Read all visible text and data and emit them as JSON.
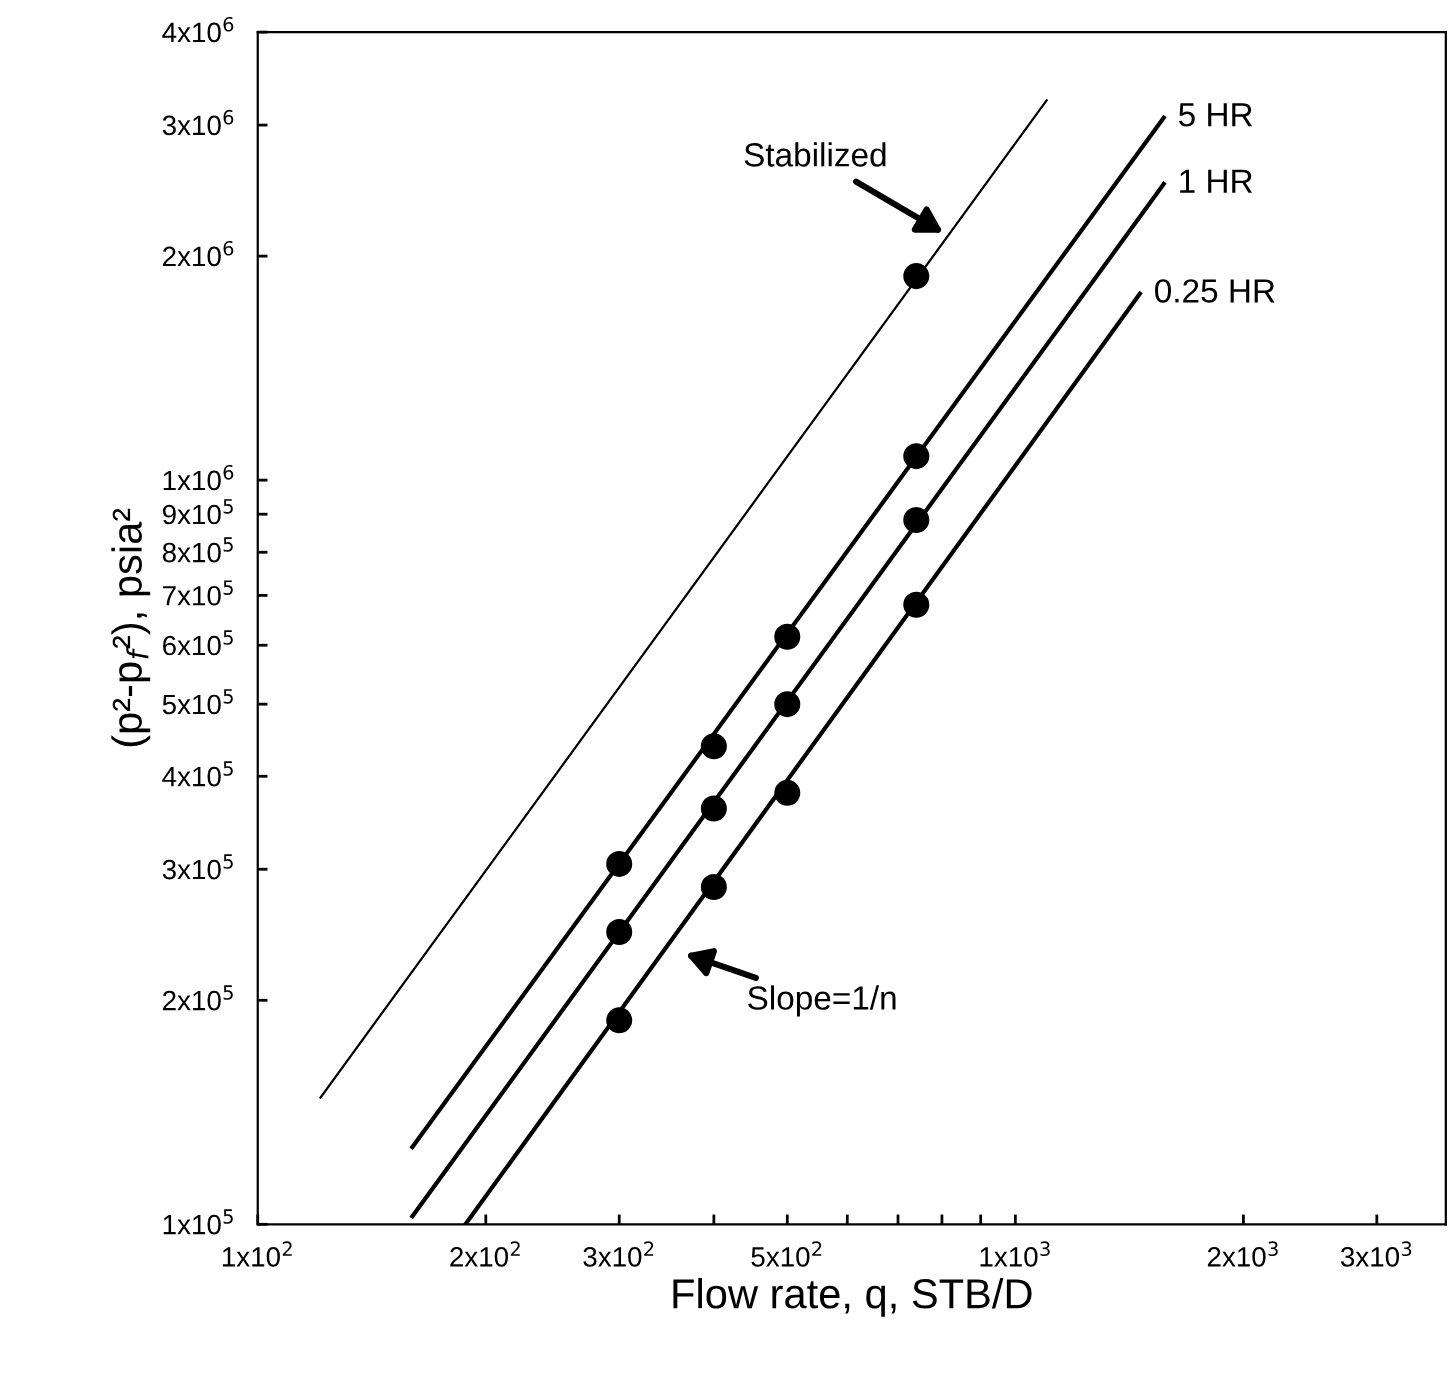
{
  "chart_data": {
    "type": "line",
    "xlabel": "Flow rate, q, STB/D",
    "ylabel": "(p²-p$_{f}$²), psia²",
    "log": "xy",
    "xlim": [
      100,
      3700
    ],
    "ylim": [
      100000,
      4000000
    ],
    "xticks": [
      {
        "value": 100,
        "label": "1x10$^{2}$"
      },
      {
        "value": 200,
        "label": "2x10$^{2}$"
      },
      {
        "value": 300,
        "label": "3x10$^{2}$"
      },
      {
        "value": 400,
        "label": null
      },
      {
        "value": 500,
        "label": "5x10$^{2}$"
      },
      {
        "value": 600,
        "label": null
      },
      {
        "value": 700,
        "label": null
      },
      {
        "value": 800,
        "label": null
      },
      {
        "value": 900,
        "label": null
      },
      {
        "value": 1000,
        "label": "1x10$^{3}$"
      },
      {
        "value": 2000,
        "label": "2x10$^{3}$"
      },
      {
        "value": 3000,
        "label": "3x10$^{3}$"
      }
    ],
    "yticks": [
      {
        "value": 100000,
        "label": "1x10$^{5}$"
      },
      {
        "value": 200000,
        "label": "2x10$^{5}$"
      },
      {
        "value": 300000,
        "label": "3x10$^{5}$"
      },
      {
        "value": 400000,
        "label": "4x10$^{5}$"
      },
      {
        "value": 500000,
        "label": "5x10$^{5}$"
      },
      {
        "value": 600000,
        "label": "6x10$^{5}$"
      },
      {
        "value": 700000,
        "label": "7x10$^{5}$"
      },
      {
        "value": 800000,
        "label": "8x10$^{5}$"
      },
      {
        "value": 900000,
        "label": "9x10$^{5}$"
      },
      {
        "value": 1000000,
        "label": "1x10$^{6}$"
      },
      {
        "value": 2000000,
        "label": "2x10$^{6}$"
      },
      {
        "value": 3000000,
        "label": "3x10$^{6}$"
      },
      {
        "value": 4000000,
        "label": "4x10$^{6}$"
      }
    ],
    "grid": false,
    "series": [
      {
        "color": "#000000",
        "marker": "none",
        "x": [
          121,
          1100
        ],
        "values": [
          148000,
          3240000
        ]
      },
      {
        "name": "5 HR",
        "color": "#000000",
        "marker": "none",
        "x": [
          160,
          1570
        ],
        "values": [
          127000,
          3070000
        ]
      },
      {
        "name": "1 HR",
        "color": "#000000",
        "marker": "none",
        "x": [
          160,
          1570
        ],
        "values": [
          102500,
          2500000
        ]
      },
      {
        "name": "0.25 HR",
        "color": "#000000",
        "marker": "none",
        "x": [
          188,
          1460
        ],
        "values": [
          100000,
          1780000
        ]
      },
      {
        "type": "scatter",
        "color": "#000000",
        "marker": "circle",
        "x": [
          740
        ],
        "values": [
          1880000
        ]
      },
      {
        "type": "scatter",
        "color": "#000000",
        "marker": "circle",
        "x": [
          300,
          400,
          500,
          740
        ],
        "values": [
          305000,
          439000,
          616000,
          1077000
        ]
      },
      {
        "type": "scatter",
        "color": "#000000",
        "marker": "circle",
        "x": [
          300,
          400,
          500,
          740
        ],
        "values": [
          247000,
          362000,
          500000,
          884000
        ]
      },
      {
        "type": "scatter",
        "color": "#000000",
        "marker": "circle",
        "x": [
          300,
          400,
          500,
          740
        ],
        "values": [
          188000,
          284000,
          380000,
          680000
        ]
      }
    ],
    "annotations": [
      {
        "text": "Stabilized",
        "x": 803,
        "y": 2150000
      },
      "Slope=1/n"
    ]
  }
}
